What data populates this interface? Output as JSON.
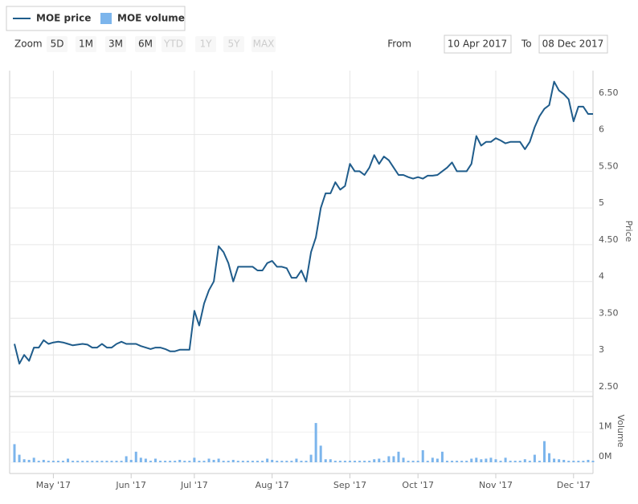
{
  "legend": [
    "MOE price",
    "MOE volume"
  ],
  "zoom": {
    "label": "Zoom",
    "buttons": [
      "5D",
      "1M",
      "3M",
      "6M",
      "YTD",
      "1Y",
      "5Y",
      "MAX"
    ],
    "disabled": [
      "YTD",
      "1Y",
      "5Y",
      "MAX"
    ]
  },
  "range": {
    "from_label": "From",
    "from": "10 Apr 2017",
    "to_label": "To",
    "to": "08 Dec 2017"
  },
  "chart_data": {
    "type": "line",
    "ylabel": "Price",
    "y2label": "Volume",
    "categories": [
      null,
      null,
      null,
      null,
      null,
      null,
      null,
      null,
      "May '17",
      null,
      null,
      null,
      null,
      null,
      null,
      null,
      null,
      null,
      null,
      null,
      null,
      null,
      null,
      null,
      "Jun '17",
      null,
      null,
      null,
      null,
      null,
      null,
      null,
      null,
      null,
      null,
      null,
      null,
      "Jul '17",
      null,
      null,
      null,
      null,
      null,
      null,
      null,
      null,
      null,
      null,
      null,
      null,
      null,
      null,
      null,
      "Aug '17",
      null,
      null,
      null,
      null,
      null,
      null,
      null,
      null,
      null,
      null,
      null,
      null,
      null,
      null,
      null,
      "Sep '17",
      null,
      null,
      null,
      null,
      null,
      null,
      null,
      null,
      null,
      null,
      null,
      null,
      null,
      "Oct '17",
      null,
      null,
      null,
      null,
      null,
      null,
      null,
      null,
      null,
      null,
      null,
      null,
      null,
      null,
      null,
      "Nov '17",
      null,
      null,
      null,
      null,
      null,
      null,
      null,
      null,
      null,
      null,
      null,
      null,
      null,
      null,
      null,
      "Dec '17",
      null,
      null,
      null,
      null
    ],
    "series": [
      {
        "name": "MOE price",
        "color": "#1f5c8b",
        "values": [
          3.15,
          2.88,
          3.0,
          2.92,
          3.1,
          3.1,
          3.2,
          3.15,
          3.17,
          3.18,
          3.17,
          3.15,
          3.13,
          3.14,
          3.15,
          3.14,
          3.1,
          3.1,
          3.15,
          3.1,
          3.1,
          3.15,
          3.18,
          3.15,
          3.15,
          3.15,
          3.12,
          3.1,
          3.08,
          3.1,
          3.1,
          3.08,
          3.05,
          3.05,
          3.07,
          3.07,
          3.07,
          3.6,
          3.4,
          3.7,
          3.88,
          4.0,
          4.48,
          4.4,
          4.25,
          4.0,
          4.2,
          4.2,
          4.2,
          4.2,
          4.15,
          4.15,
          4.25,
          4.28,
          4.2,
          4.2,
          4.18,
          4.05,
          4.05,
          4.15,
          4.0,
          4.4,
          4.6,
          5.0,
          5.2,
          5.2,
          5.35,
          5.25,
          5.3,
          5.6,
          5.5,
          5.5,
          5.45,
          5.55,
          5.72,
          5.6,
          5.7,
          5.65,
          5.55,
          5.45,
          5.45,
          5.42,
          5.4,
          5.42,
          5.4,
          5.44,
          5.44,
          5.45,
          5.5,
          5.55,
          5.62,
          5.5,
          5.5,
          5.5,
          5.6,
          5.98,
          5.85,
          5.9,
          5.9,
          5.95,
          5.92,
          5.88,
          5.9,
          5.9,
          5.9,
          5.8,
          5.9,
          6.1,
          6.25,
          6.35,
          6.4,
          6.72,
          6.6,
          6.55,
          6.48,
          6.18,
          6.38,
          6.38,
          6.28,
          6.28
        ]
      },
      {
        "name": "MOE volume",
        "color": "#7cb5ec",
        "axis": "y2",
        "values": [
          0.6,
          0.25,
          0.1,
          0.08,
          0.15,
          0.05,
          0.08,
          0.05,
          0.05,
          0.05,
          0.05,
          0.12,
          0.05,
          0.05,
          0.05,
          0.05,
          0.05,
          0.05,
          0.05,
          0.05,
          0.05,
          0.05,
          0.05,
          0.2,
          0.08,
          0.35,
          0.15,
          0.12,
          0.05,
          0.12,
          0.05,
          0.05,
          0.05,
          0.05,
          0.08,
          0.05,
          0.05,
          0.15,
          0.05,
          0.05,
          0.12,
          0.08,
          0.12,
          0.05,
          0.05,
          0.08,
          0.05,
          0.05,
          0.05,
          0.05,
          0.05,
          0.05,
          0.12,
          0.08,
          0.05,
          0.05,
          0.05,
          0.05,
          0.12,
          0.05,
          0.05,
          0.25,
          1.3,
          0.55,
          0.1,
          0.1,
          0.05,
          0.05,
          0.05,
          0.05,
          0.05,
          0.05,
          0.05,
          0.05,
          0.1,
          0.12,
          0.05,
          0.2,
          0.2,
          0.35,
          0.15,
          0.05,
          0.05,
          0.05,
          0.4,
          0.05,
          0.15,
          0.12,
          0.35,
          0.05,
          0.05,
          0.05,
          0.05,
          0.05,
          0.12,
          0.15,
          0.1,
          0.12,
          0.15,
          0.1,
          0.05,
          0.15,
          0.05,
          0.05,
          0.05,
          0.1,
          0.05,
          0.25,
          0.05,
          0.7,
          0.3,
          0.12,
          0.1,
          0.08,
          0.05,
          0.05,
          0.05,
          0.05,
          0.08,
          0.05
        ]
      }
    ],
    "ylim": [
      2.5,
      6.87
    ],
    "yticks": [
      {
        "value": 2.5,
        "label": "2.50"
      },
      3,
      {
        "value": 3.5,
        "label": "3.50"
      },
      4,
      {
        "value": 4.5,
        "label": "4.50"
      },
      5,
      {
        "value": 5.5,
        "label": "5.50"
      },
      6,
      {
        "value": 6.5,
        "label": "6.50"
      }
    ],
    "y2lim": [
      0,
      2.1
    ],
    "y2ticks": [
      {
        "value": 0,
        "label": "0M"
      },
      {
        "value": 1,
        "label": "1M"
      }
    ],
    "grid": true
  }
}
